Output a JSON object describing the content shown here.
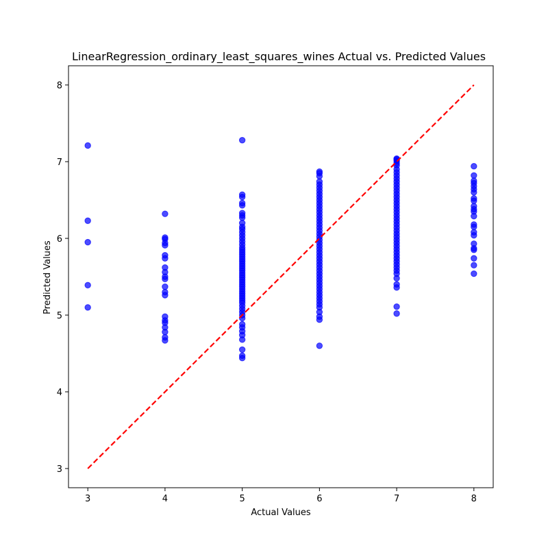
{
  "chart_data": {
    "type": "scatter",
    "title": "LinearRegression_ordinary_least_squares_wines Actual vs. Predicted Values",
    "xlabel": "Actual Values",
    "ylabel": "Predicted Values",
    "xlim": [
      2.75,
      8.25
    ],
    "ylim": [
      2.75,
      8.25
    ],
    "xticks": [
      "3",
      "4",
      "5",
      "6",
      "7",
      "8"
    ],
    "yticks": [
      "3",
      "4",
      "5",
      "6",
      "7",
      "8"
    ],
    "grid": false,
    "legend": "none",
    "point_color": "#0000ff",
    "point_opacity": 0.7,
    "reference_line": {
      "x": [
        3,
        8
      ],
      "y": [
        3,
        8
      ],
      "color": "#ff0000",
      "style": "dashed"
    },
    "points": [
      {
        "x": 3,
        "y": [
          7.21,
          6.23,
          5.95,
          5.39,
          5.1
        ]
      },
      {
        "x": 4,
        "y": [
          6.32,
          6.01,
          5.99,
          5.94,
          5.91,
          5.78,
          5.74,
          5.62,
          5.56,
          5.5,
          5.47,
          5.37,
          5.3,
          5.26,
          4.98,
          4.93,
          4.9,
          4.84,
          4.78,
          4.71,
          4.67
        ]
      },
      {
        "x": 5,
        "y": [
          7.28,
          6.57,
          6.54,
          6.46,
          6.43,
          6.33,
          6.3,
          6.27,
          6.2,
          6.15,
          6.12,
          6.08,
          6.04,
          6.0,
          5.96,
          5.92,
          5.88,
          5.85,
          5.82,
          5.79,
          5.76,
          5.73,
          5.7,
          5.67,
          5.64,
          5.61,
          5.58,
          5.55,
          5.52,
          5.49,
          5.46,
          5.43,
          5.4,
          5.37,
          5.34,
          5.31,
          5.28,
          5.25,
          5.22,
          5.19,
          5.16,
          5.12,
          5.08,
          5.04,
          5.0,
          4.96,
          4.88,
          4.84,
          4.79,
          4.74,
          4.68,
          4.55,
          4.47,
          4.44
        ]
      },
      {
        "x": 6,
        "y": [
          6.87,
          6.85,
          6.81,
          6.74,
          6.7,
          6.66,
          6.62,
          6.58,
          6.54,
          6.5,
          6.46,
          6.42,
          6.38,
          6.34,
          6.3,
          6.26,
          6.22,
          6.18,
          6.14,
          6.1,
          6.06,
          6.02,
          5.98,
          5.94,
          5.9,
          5.86,
          5.82,
          5.78,
          5.74,
          5.7,
          5.66,
          5.62,
          5.58,
          5.54,
          5.5,
          5.46,
          5.42,
          5.38,
          5.34,
          5.3,
          5.26,
          5.22,
          5.18,
          5.14,
          5.1,
          5.04,
          4.98,
          4.94,
          4.6
        ]
      },
      {
        "x": 7,
        "y": [
          7.04,
          7.03,
          7.01,
          6.98,
          6.95,
          6.9,
          6.86,
          6.82,
          6.78,
          6.74,
          6.7,
          6.66,
          6.62,
          6.58,
          6.54,
          6.5,
          6.46,
          6.42,
          6.38,
          6.34,
          6.3,
          6.26,
          6.22,
          6.18,
          6.14,
          6.1,
          6.06,
          6.02,
          5.98,
          5.94,
          5.9,
          5.86,
          5.82,
          5.78,
          5.74,
          5.7,
          5.66,
          5.62,
          5.58,
          5.54,
          5.48,
          5.4,
          5.36,
          5.11,
          5.02
        ]
      },
      {
        "x": 8,
        "y": [
          6.94,
          6.82,
          6.75,
          6.72,
          6.68,
          6.64,
          6.6,
          6.52,
          6.49,
          6.42,
          6.38,
          6.35,
          6.29,
          6.18,
          6.15,
          6.08,
          6.04,
          5.93,
          5.87,
          5.85,
          5.74,
          5.65,
          5.54
        ]
      }
    ]
  }
}
